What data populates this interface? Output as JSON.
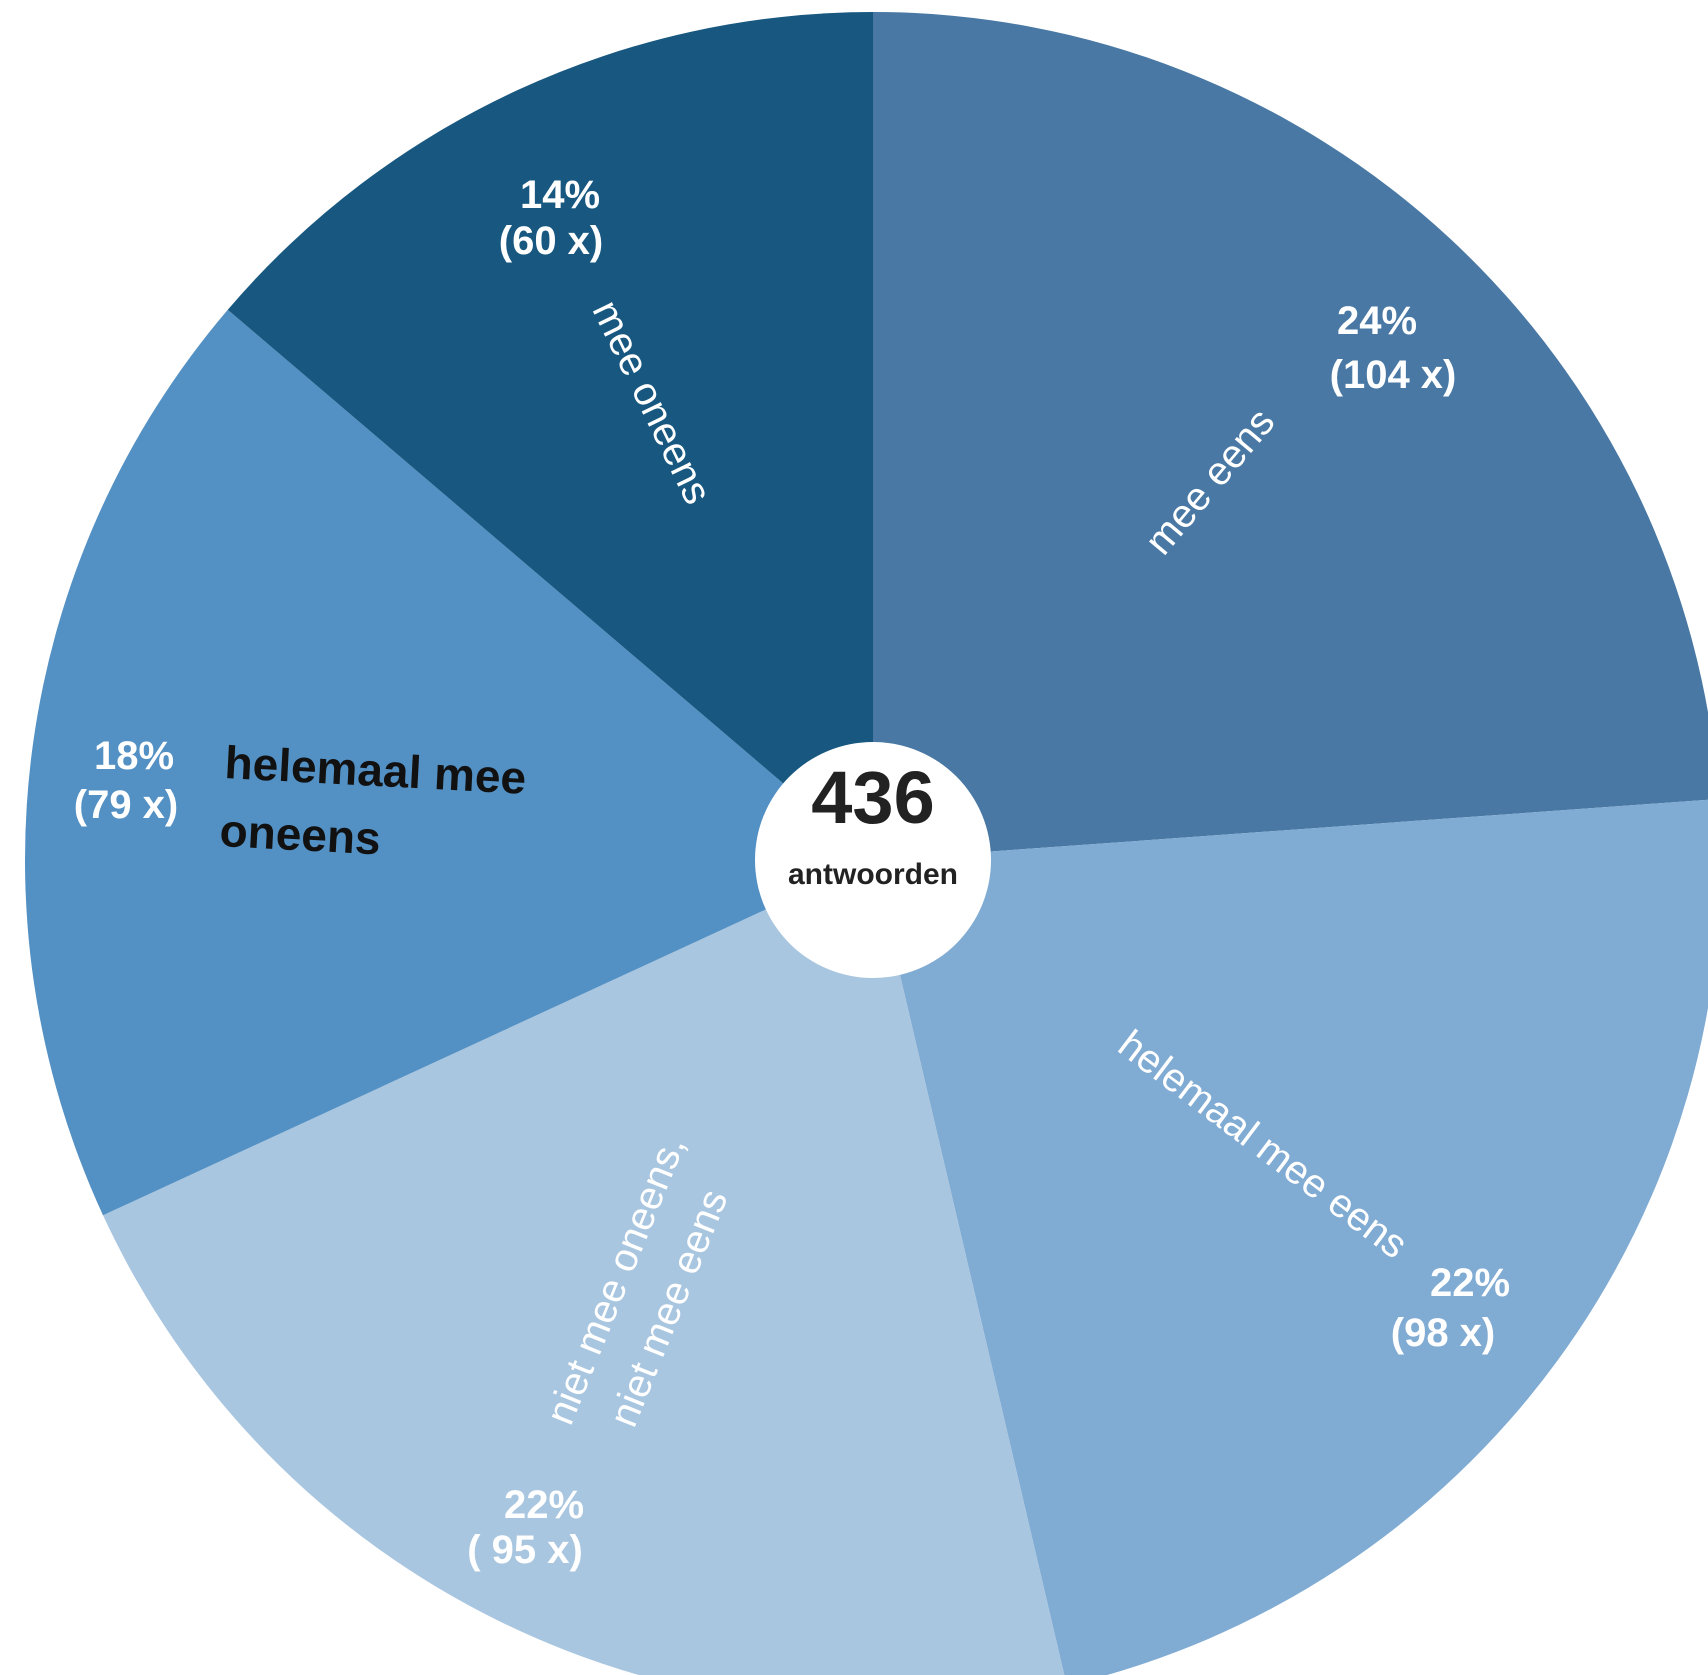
{
  "chart_data": {
    "type": "pie",
    "total": "436",
    "total_label": "antwoorden",
    "slices": [
      {
        "category": "mee eens",
        "percent_label": "24%",
        "count_label": "(104 x)",
        "value": 104,
        "color": "#4878a3"
      },
      {
        "category": "helemaal mee eens",
        "percent_label": "22%",
        "count_label": "(98 x)",
        "value": 98,
        "color": "#80abd3"
      },
      {
        "category_lines": [
          "niet mee oneens,",
          "niet mee eens"
        ],
        "percent_label": "22%",
        "count_label": "( 95 x)",
        "value": 95,
        "color": "#a9c6e0"
      },
      {
        "category_lines": [
          "helemaal mee",
          "oneens"
        ],
        "percent_label": "18%",
        "count_label": "(79 x)",
        "value": 79,
        "color": "#5390c3"
      },
      {
        "category": "mee oneens",
        "percent_label": "14%",
        "count_label": "(60 x)",
        "value": 60,
        "color": "#185880"
      }
    ],
    "start": "12 o'clock",
    "direction": "clockwise"
  }
}
